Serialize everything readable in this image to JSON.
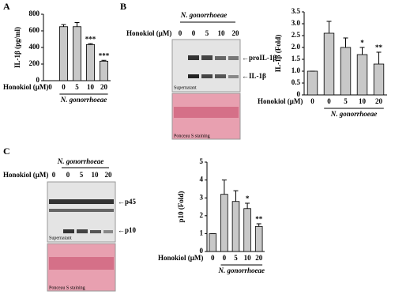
{
  "panels": [
    "A",
    "B",
    "C"
  ],
  "blots": [
    {
      "group_label": "N. gonorrhoeae",
      "x_label": "Honokiol (μM)",
      "lanes": [
        "0",
        "0",
        "5",
        "10",
        "20"
      ],
      "bands": [
        "←proIL-1β",
        "←IL-1β"
      ],
      "caption": "Supernatant",
      "stain": "Ponceau S staining"
    },
    {
      "group_label": "N. gonorrhoeae",
      "x_label": "Honokiol (μM)",
      "lanes": [
        "0",
        "0",
        "5",
        "10",
        "20"
      ],
      "bands": [
        "←p45",
        "←p10"
      ],
      "caption": "Supernatant",
      "stain": "Ponceau S staining"
    }
  ],
  "chart_data": [
    {
      "type": "bar",
      "y_label": "IL-1β (pg/ml)",
      "x_label": "Honokiol (μM)",
      "group_label": "N. gonorrhoeae",
      "categories": [
        "0",
        "0",
        "5",
        "10",
        "20"
      ],
      "values": [
        0,
        650,
        650,
        435,
        235
      ],
      "errors": [
        0,
        25,
        50,
        10,
        10
      ],
      "significance": [
        null,
        null,
        null,
        "***",
        "***"
      ],
      "color": "#c8c8c8",
      "ylim": [
        0,
        800
      ],
      "yticks": [
        0,
        200,
        400,
        600,
        800
      ]
    },
    {
      "type": "bar",
      "y_label": "IL-1β (Fold)",
      "x_label": "Honokiol (μM)",
      "group_label": "N. gonorrhoeae",
      "categories": [
        "0",
        "0",
        "5",
        "10",
        "20"
      ],
      "values": [
        1.0,
        2.6,
        2.0,
        1.7,
        1.3
      ],
      "errors": [
        0,
        0.5,
        0.4,
        0.3,
        0.5
      ],
      "significance": [
        null,
        null,
        null,
        "*",
        "**"
      ],
      "color": "#c8c8c8",
      "ylim": [
        0,
        3.5
      ],
      "yticks": [
        0,
        0.5,
        {
          "value": 1,
          "label": "1.0"
        },
        1.5,
        {
          "value": 2,
          "label": "2.0"
        },
        2.5,
        {
          "value": 3,
          "label": "3.0"
        },
        3.5
      ]
    },
    {
      "type": "bar",
      "y_label": "p10 (Fold)",
      "x_label": "Honokiol (μM)",
      "group_label": "N. gonorrhoeae",
      "categories": [
        "0",
        "0",
        "5",
        "10",
        "20"
      ],
      "values": [
        1.0,
        3.2,
        2.8,
        2.4,
        1.4
      ],
      "errors": [
        0,
        0.8,
        0.6,
        0.3,
        0.15
      ],
      "significance": [
        null,
        null,
        null,
        "*",
        "**"
      ],
      "color": "#c8c8c8",
      "ylim": [
        0,
        5
      ],
      "yticks": [
        0,
        1,
        2,
        3,
        4,
        5
      ]
    }
  ]
}
